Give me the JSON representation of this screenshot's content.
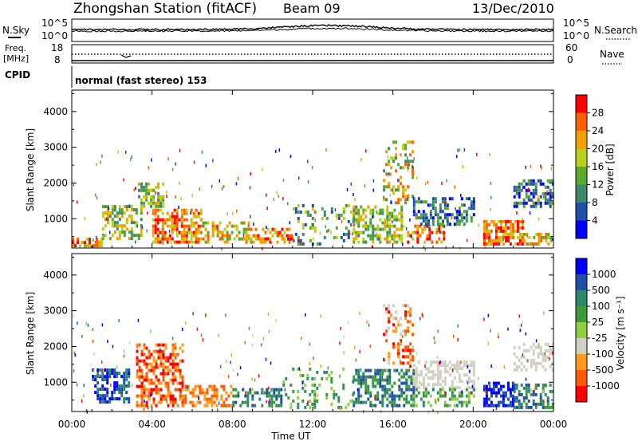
{
  "header": {
    "station": "Zhongshan Station (fitACF)",
    "beam": "Beam 09",
    "date": "13/Dec/2010"
  },
  "top_panels": {
    "nsky_label": "N.Sky",
    "nsky_ticks": [
      "10^5",
      "10^0"
    ],
    "nsearch_label": "N.Search",
    "nsearch_ticks": [
      "10^5",
      "10^0"
    ],
    "freq_label_1": "Freq.",
    "freq_label_2": "[MHz]",
    "freq_ticks": [
      "18",
      "8"
    ],
    "nave_label": "Nave",
    "nave_ticks": [
      "60",
      "0"
    ],
    "cpid_label": "CPID",
    "cpid_text": "normal (fast stereo) 153"
  },
  "chart_data": [
    {
      "type": "heatmap",
      "name": "power",
      "ylabel": "Slant Range [km]",
      "ylim": [
        180,
        4600
      ],
      "yticks": [
        1000,
        2000,
        3000,
        4000
      ],
      "colorbar_label": "Power [dB]",
      "colorbar_ticks": [
        "28",
        "24",
        "20",
        "16",
        "12",
        "8",
        "4"
      ],
      "colors": [
        "#0000ff",
        "#1f4fa8",
        "#3c8a6a",
        "#5aa82c",
        "#b8d01a",
        "#f0a000",
        "#ff6000",
        "#ff0000"
      ],
      "bands": [
        {
          "t": [
            0.0,
            1.5
          ],
          "r": [
            200,
            400
          ],
          "level": [
            4,
            7
          ],
          "density": 0.7
        },
        {
          "t": [
            1.5,
            3.5
          ],
          "r": [
            400,
            1300
          ],
          "level": [
            2,
            5
          ],
          "density": 0.55
        },
        {
          "t": [
            3.3,
            4.5
          ],
          "r": [
            1300,
            2000
          ],
          "level": [
            2,
            5
          ],
          "density": 0.5
        },
        {
          "t": [
            4.0,
            6.5
          ],
          "r": [
            300,
            1200
          ],
          "level": [
            4,
            7
          ],
          "density": 0.65
        },
        {
          "t": [
            6.5,
            9.0
          ],
          "r": [
            300,
            900
          ],
          "level": [
            3,
            6
          ],
          "density": 0.5
        },
        {
          "t": [
            9.0,
            11.0
          ],
          "r": [
            300,
            700
          ],
          "level": [
            4,
            7
          ],
          "density": 0.5
        },
        {
          "t": [
            11.0,
            14.0
          ],
          "r": [
            250,
            1400
          ],
          "level": [
            1,
            4
          ],
          "density": 0.2
        },
        {
          "t": [
            14.0,
            16.5
          ],
          "r": [
            300,
            1300
          ],
          "level": [
            2,
            5
          ],
          "density": 0.55
        },
        {
          "t": [
            15.5,
            17.0
          ],
          "r": [
            1400,
            3100
          ],
          "level": [
            2,
            6
          ],
          "density": 0.3
        },
        {
          "t": [
            16.7,
            18.5
          ],
          "r": [
            300,
            800
          ],
          "level": [
            4,
            7
          ],
          "density": 0.5
        },
        {
          "t": [
            17.0,
            20.0
          ],
          "r": [
            800,
            1600
          ],
          "level": [
            0,
            3
          ],
          "density": 0.55
        },
        {
          "t": [
            20.5,
            22.5
          ],
          "r": [
            250,
            900
          ],
          "level": [
            4,
            7
          ],
          "density": 0.65
        },
        {
          "t": [
            22.0,
            24.0
          ],
          "r": [
            1300,
            2100
          ],
          "level": [
            0,
            3
          ],
          "density": 0.55
        },
        {
          "t": [
            22.5,
            24.0
          ],
          "r": [
            250,
            600
          ],
          "level": [
            3,
            6
          ],
          "density": 0.5
        }
      ]
    },
    {
      "type": "heatmap",
      "name": "velocity",
      "ylabel": "Slant Range [km]",
      "xlabel": "Time UT",
      "ylim": [
        180,
        4600
      ],
      "yticks": [
        1000,
        2000,
        3000,
        4000
      ],
      "xticks": [
        "00:00",
        "04:00",
        "08:00",
        "12:00",
        "16:00",
        "20:00",
        "00:00"
      ],
      "colorbar_label": "Velocity [m s⁻¹]",
      "colorbar_ticks": [
        "1000",
        "500",
        "100",
        "25",
        "-25",
        "-100",
        "-500",
        "-1000"
      ],
      "colors": [
        "#ff0000",
        "#ff5a00",
        "#ff9a1a",
        "#cfcfc2",
        "#8fd040",
        "#3c9a3c",
        "#2c8a6a",
        "#1f4fa8",
        "#0000ff"
      ],
      "bands": [
        {
          "t": [
            1.0,
            2.8
          ],
          "r": [
            400,
            1300
          ],
          "level": [
            6,
            8
          ],
          "density": 0.55
        },
        {
          "t": [
            3.2,
            5.5
          ],
          "r": [
            300,
            2000
          ],
          "level": [
            0,
            2
          ],
          "density": 0.55
        },
        {
          "t": [
            5.5,
            8.0
          ],
          "r": [
            300,
            900
          ],
          "level": [
            1,
            2
          ],
          "density": 0.5
        },
        {
          "t": [
            8.0,
            10.5
          ],
          "r": [
            300,
            800
          ],
          "level": [
            5,
            7
          ],
          "density": 0.45
        },
        {
          "t": [
            10.5,
            14.0
          ],
          "r": [
            250,
            1400
          ],
          "level": [
            4,
            6
          ],
          "density": 0.2
        },
        {
          "t": [
            14.0,
            17.0
          ],
          "r": [
            300,
            1300
          ],
          "level": [
            5,
            7
          ],
          "density": 0.55
        },
        {
          "t": [
            15.5,
            17.0
          ],
          "r": [
            1400,
            3100
          ],
          "level": [
            0,
            3
          ],
          "density": 0.3
        },
        {
          "t": [
            17.0,
            20.0
          ],
          "r": [
            800,
            1600
          ],
          "level": [
            3,
            3
          ],
          "density": 0.5
        },
        {
          "t": [
            17.0,
            20.0
          ],
          "r": [
            300,
            800
          ],
          "level": [
            4,
            6
          ],
          "density": 0.4
        },
        {
          "t": [
            20.5,
            22.0
          ],
          "r": [
            300,
            1000
          ],
          "level": [
            7,
            8
          ],
          "density": 0.6
        },
        {
          "t": [
            22.0,
            24.0
          ],
          "r": [
            1300,
            2100
          ],
          "level": [
            3,
            3
          ],
          "density": 0.5
        },
        {
          "t": [
            22.0,
            24.0
          ],
          "r": [
            250,
            900
          ],
          "level": [
            5,
            7
          ],
          "density": 0.55
        }
      ]
    }
  ]
}
